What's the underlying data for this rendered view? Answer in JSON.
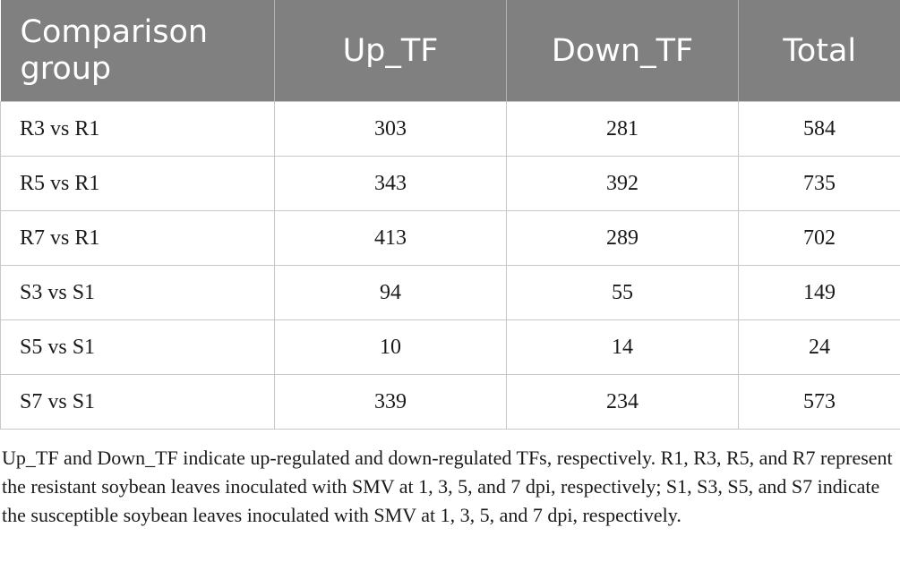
{
  "table": {
    "headers": [
      "Comparison group",
      "Up_TF",
      "Down_TF",
      "Total"
    ],
    "rows": [
      [
        "R3 vs R1",
        "303",
        "281",
        "584"
      ],
      [
        "R5 vs R1",
        "343",
        "392",
        "735"
      ],
      [
        "R7 vs R1",
        "413",
        "289",
        "702"
      ],
      [
        "S3 vs S1",
        "94",
        "55",
        "149"
      ],
      [
        "S5 vs S1",
        "10",
        "14",
        "24"
      ],
      [
        "S7 vs S1",
        "339",
        "234",
        "573"
      ]
    ]
  },
  "footnote": "Up_TF and Down_TF indicate up-regulated and down-regulated TFs, respectively. R1, R3, R5, and R7 represent the resistant soybean leaves inoculated with SMV at 1, 3, 5, and 7 dpi, respectively; S1, S3, S5, and S7 indicate the susceptible soybean leaves inoculated with SMV at 1, 3, 5, and 7 dpi, respectively.",
  "colors": {
    "header_bg": "#808080",
    "header_text": "#ffffff",
    "grid": "#c8c8c8"
  }
}
